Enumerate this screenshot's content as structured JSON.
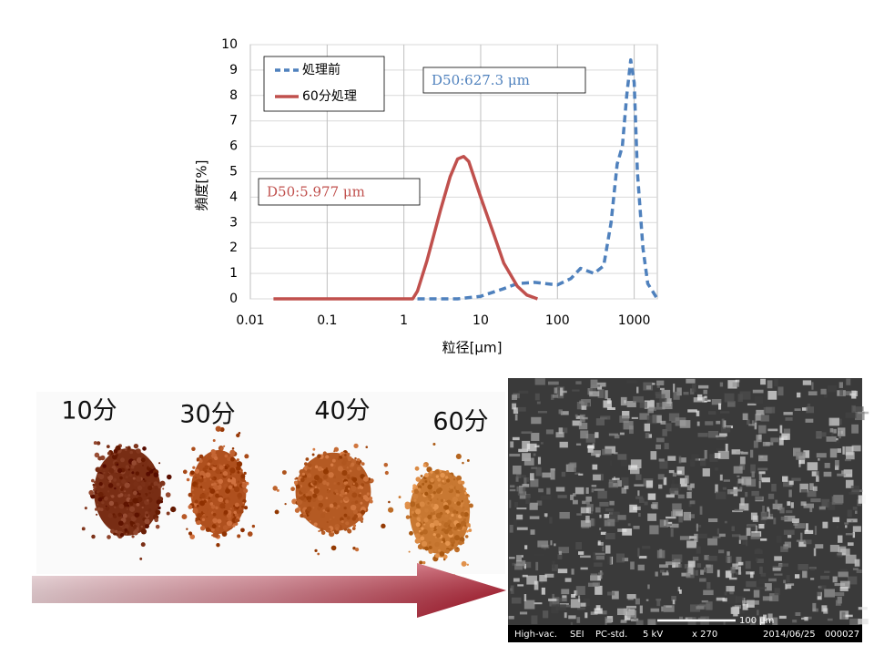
{
  "chart_data": {
    "type": "line",
    "x_label": "粒径[μm]",
    "y_label": "頻度[%]",
    "xlim": [
      0.01,
      2000
    ],
    "xticks": [
      0.01,
      0.1,
      1,
      10,
      100,
      1000
    ],
    "log_x": true,
    "ylim": [
      0,
      10
    ],
    "yticks": [
      0,
      1,
      2,
      3,
      4,
      5,
      6,
      7,
      8,
      9,
      10
    ],
    "grid": true,
    "legend": "upper left",
    "series": [
      {
        "name": "処理前",
        "color": "#4f81bd",
        "dash": true,
        "x": [
          1.5,
          5,
          10,
          20,
          30,
          50,
          100,
          150,
          200,
          300,
          400,
          500,
          600,
          700,
          800,
          900,
          1000,
          1100,
          1300,
          1500,
          2000
        ],
        "values": [
          0,
          0,
          0.1,
          0.4,
          0.6,
          0.65,
          0.55,
          0.8,
          1.2,
          1.0,
          1.3,
          3.0,
          5.3,
          6.0,
          8.0,
          9.4,
          8.5,
          5.0,
          2.0,
          0.6,
          0
        ]
      },
      {
        "name": "60分処理",
        "color": "#c0504d",
        "dash": false,
        "x": [
          0.02,
          0.1,
          1,
          1.3,
          1.5,
          2,
          3,
          4,
          5,
          6,
          7,
          10,
          15,
          20,
          30,
          40,
          55
        ],
        "values": [
          0,
          0,
          0,
          0,
          0.3,
          1.5,
          3.5,
          4.8,
          5.5,
          5.6,
          5.4,
          4.0,
          2.5,
          1.4,
          0.5,
          0.15,
          0
        ]
      }
    ],
    "annotations": [
      {
        "text": "D50:627.3 μm",
        "color": "#4f81bd"
      },
      {
        "text": "D50:5.977 μm",
        "color": "#c0504d"
      }
    ]
  },
  "photos": {
    "labels": [
      "10分",
      "30分",
      "40分",
      "60分"
    ]
  },
  "sem": {
    "scale": "100 μm",
    "caption": [
      "High-vac.",
      "SEI",
      "PC-std.",
      "5 kV",
      "x 270",
      "2014/06/25",
      "000027"
    ]
  }
}
